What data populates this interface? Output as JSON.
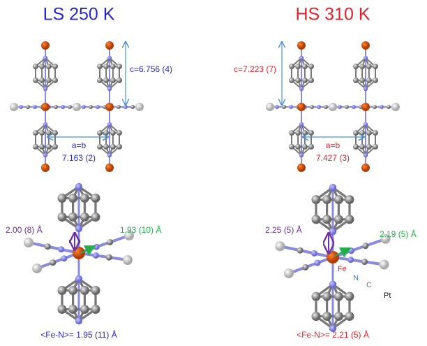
{
  "panels": [
    {
      "title": "LS 250 K",
      "lattice": {
        "c_label": "c=6.756 (4)",
        "ab_label": "a=b",
        "ab_value": "7.163 (2)"
      },
      "bonds": {
        "axial": "2.00 (8) Å",
        "equatorial": "1.93 (10) Å",
        "average": "<Fe-N>= 1.95 (11) Å"
      }
    },
    {
      "title": "HS 310 K",
      "lattice": {
        "c_label": "c=7.223 (7)",
        "ab_label": "a=b",
        "ab_value": "7.427 (3)"
      },
      "bonds": {
        "axial": "2.25 (5) Å",
        "equatorial": "2.19 (5) Å",
        "average": "<Fe-N>= 2.21 (5) Å"
      },
      "atom_labels": {
        "fe": "Fe",
        "n": "N",
        "c": "C",
        "pt": "Pt"
      }
    }
  ]
}
